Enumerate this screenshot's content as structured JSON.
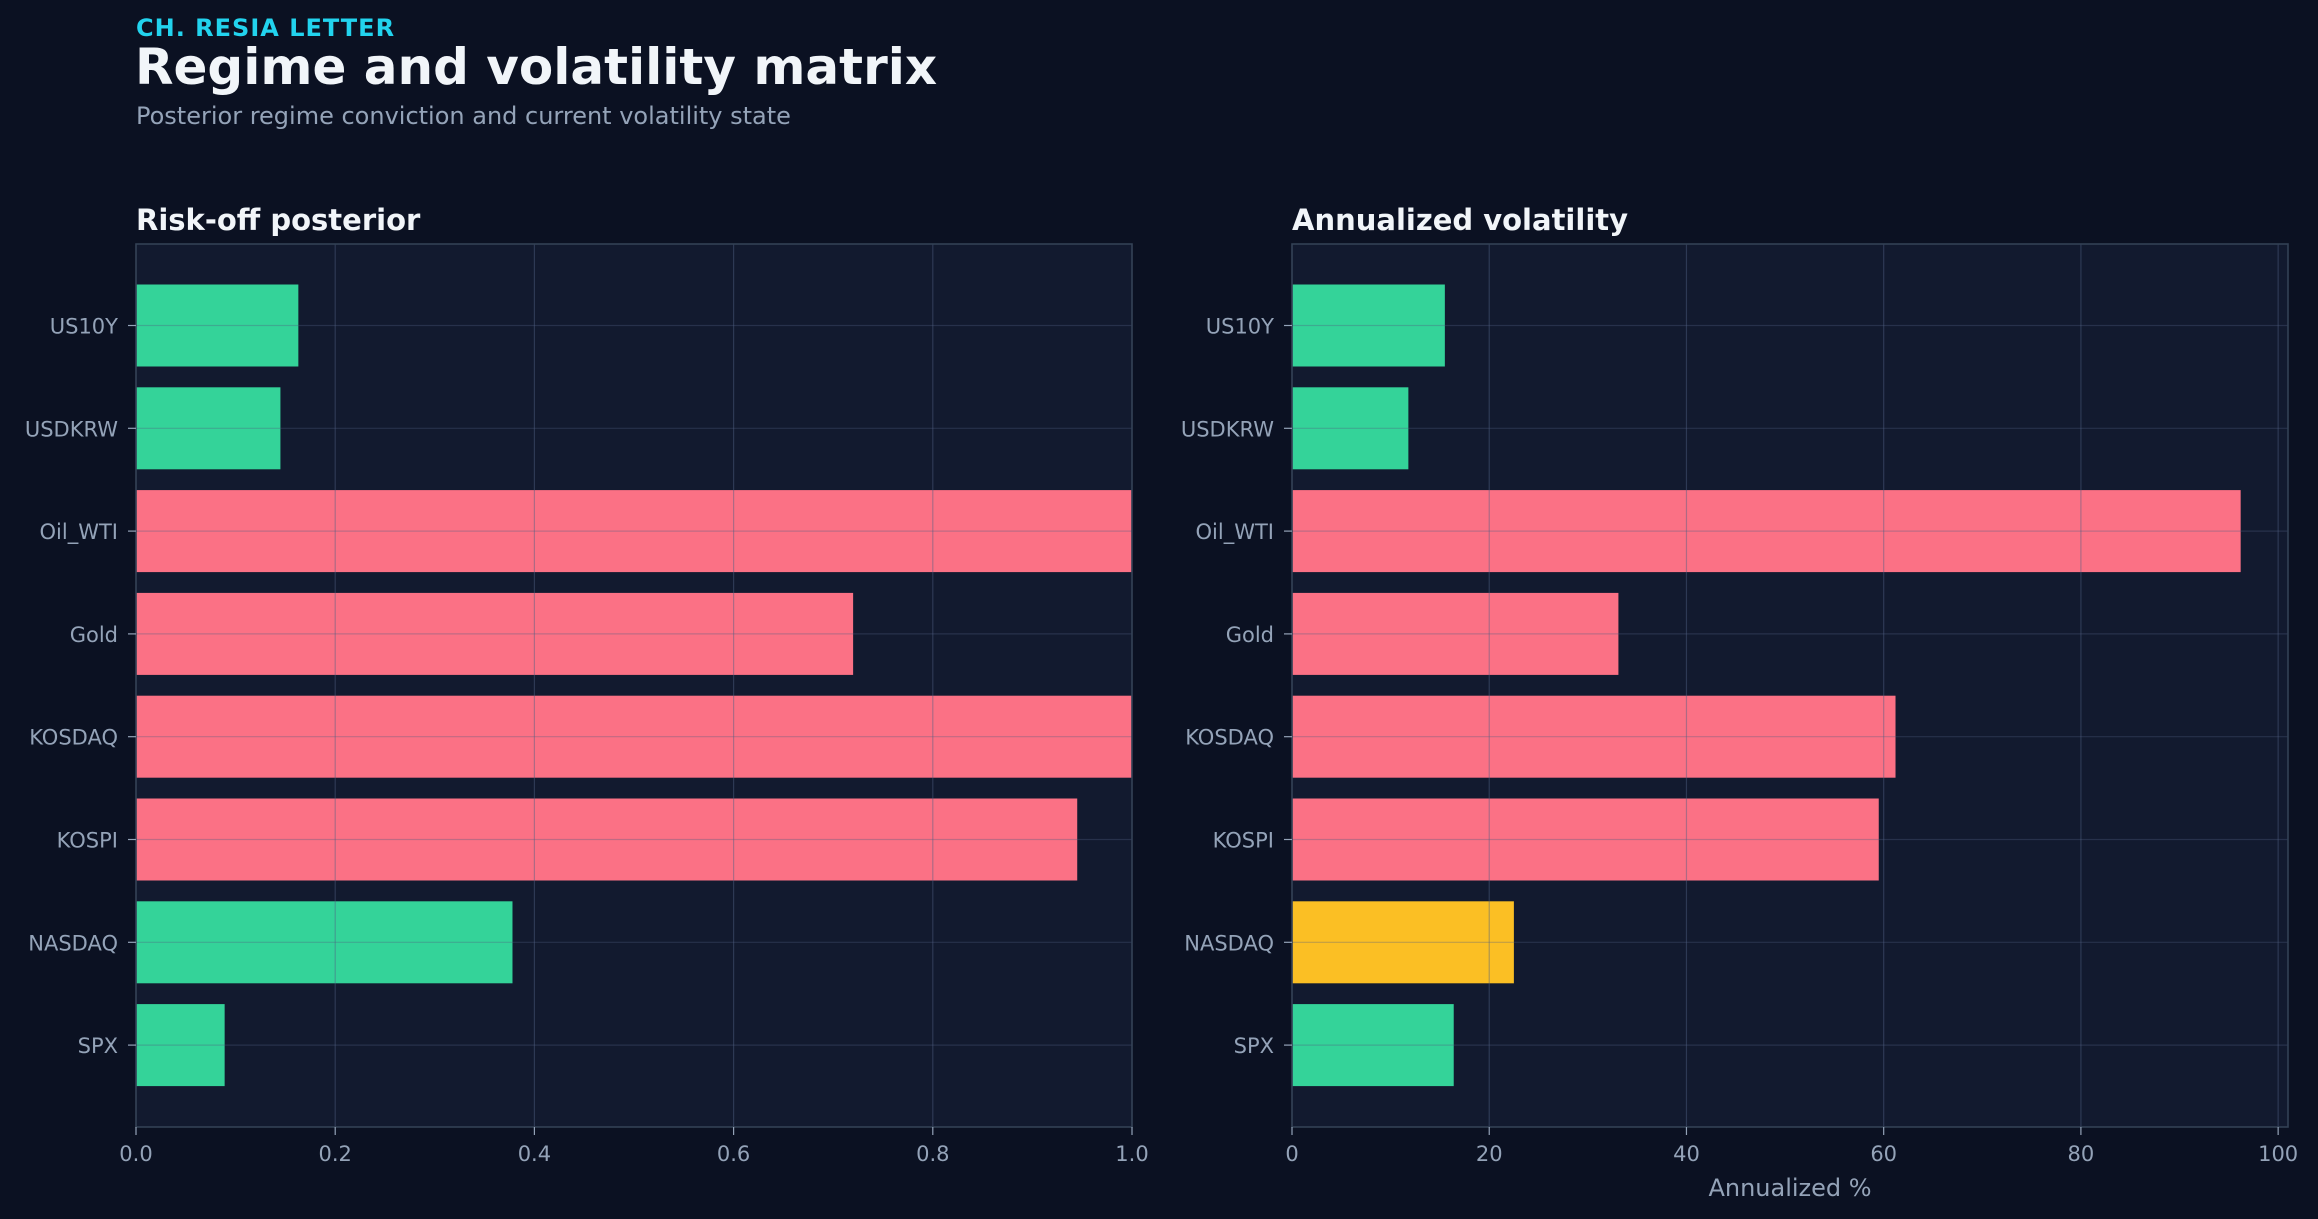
{
  "header": {
    "kicker": "CH. RESIA LETTER",
    "title": "Regime and volatility matrix",
    "subtitle": "Posterior regime conviction and current volatility state"
  },
  "colors": {
    "background": "#0b1122",
    "panel": "#121a2f",
    "grid": "#1f2a44",
    "frame": "#334155",
    "text": "#f1f5f9",
    "muted": "#94a3b8",
    "accent": "#22d3ee",
    "green": "#34d399",
    "red": "#fb7185",
    "yellow": "#fbbf24"
  },
  "chart_data": [
    {
      "type": "bar",
      "orientation": "horizontal",
      "title": "Risk-off posterior",
      "xlabel": "",
      "ylabel": "",
      "categories": [
        "US10Y",
        "USDKRW",
        "Oil_WTI",
        "Gold",
        "KOSDAQ",
        "KOSPI",
        "NASDAQ",
        "SPX"
      ],
      "values": [
        0.163,
        0.145,
        1.0,
        0.72,
        1.0,
        0.945,
        0.378,
        0.089
      ],
      "bar_colors": [
        "green",
        "green",
        "red",
        "red",
        "red",
        "red",
        "green",
        "green"
      ],
      "xlim": [
        0,
        1.0
      ],
      "xticks": [
        "0.0",
        "0.2",
        "0.4",
        "0.6",
        "0.8",
        "1.0"
      ],
      "xtick_values": [
        0,
        0.2,
        0.4,
        0.6,
        0.8,
        1.0
      ],
      "grid": true
    },
    {
      "type": "bar",
      "orientation": "horizontal",
      "title": "Annualized volatility",
      "xlabel": "Annualized %",
      "ylabel": "",
      "categories": [
        "US10Y",
        "USDKRW",
        "Oil_WTI",
        "Gold",
        "KOSDAQ",
        "KOSPI",
        "NASDAQ",
        "SPX"
      ],
      "values": [
        15.5,
        11.8,
        96.2,
        33.1,
        61.2,
        59.5,
        22.5,
        16.4
      ],
      "bar_colors": [
        "green",
        "green",
        "red",
        "red",
        "red",
        "red",
        "yellow",
        "green"
      ],
      "xlim": [
        0,
        101
      ],
      "xticks": [
        "0",
        "20",
        "40",
        "60",
        "80",
        "100"
      ],
      "xtick_values": [
        0,
        20,
        40,
        60,
        80,
        100
      ],
      "grid": true
    }
  ]
}
